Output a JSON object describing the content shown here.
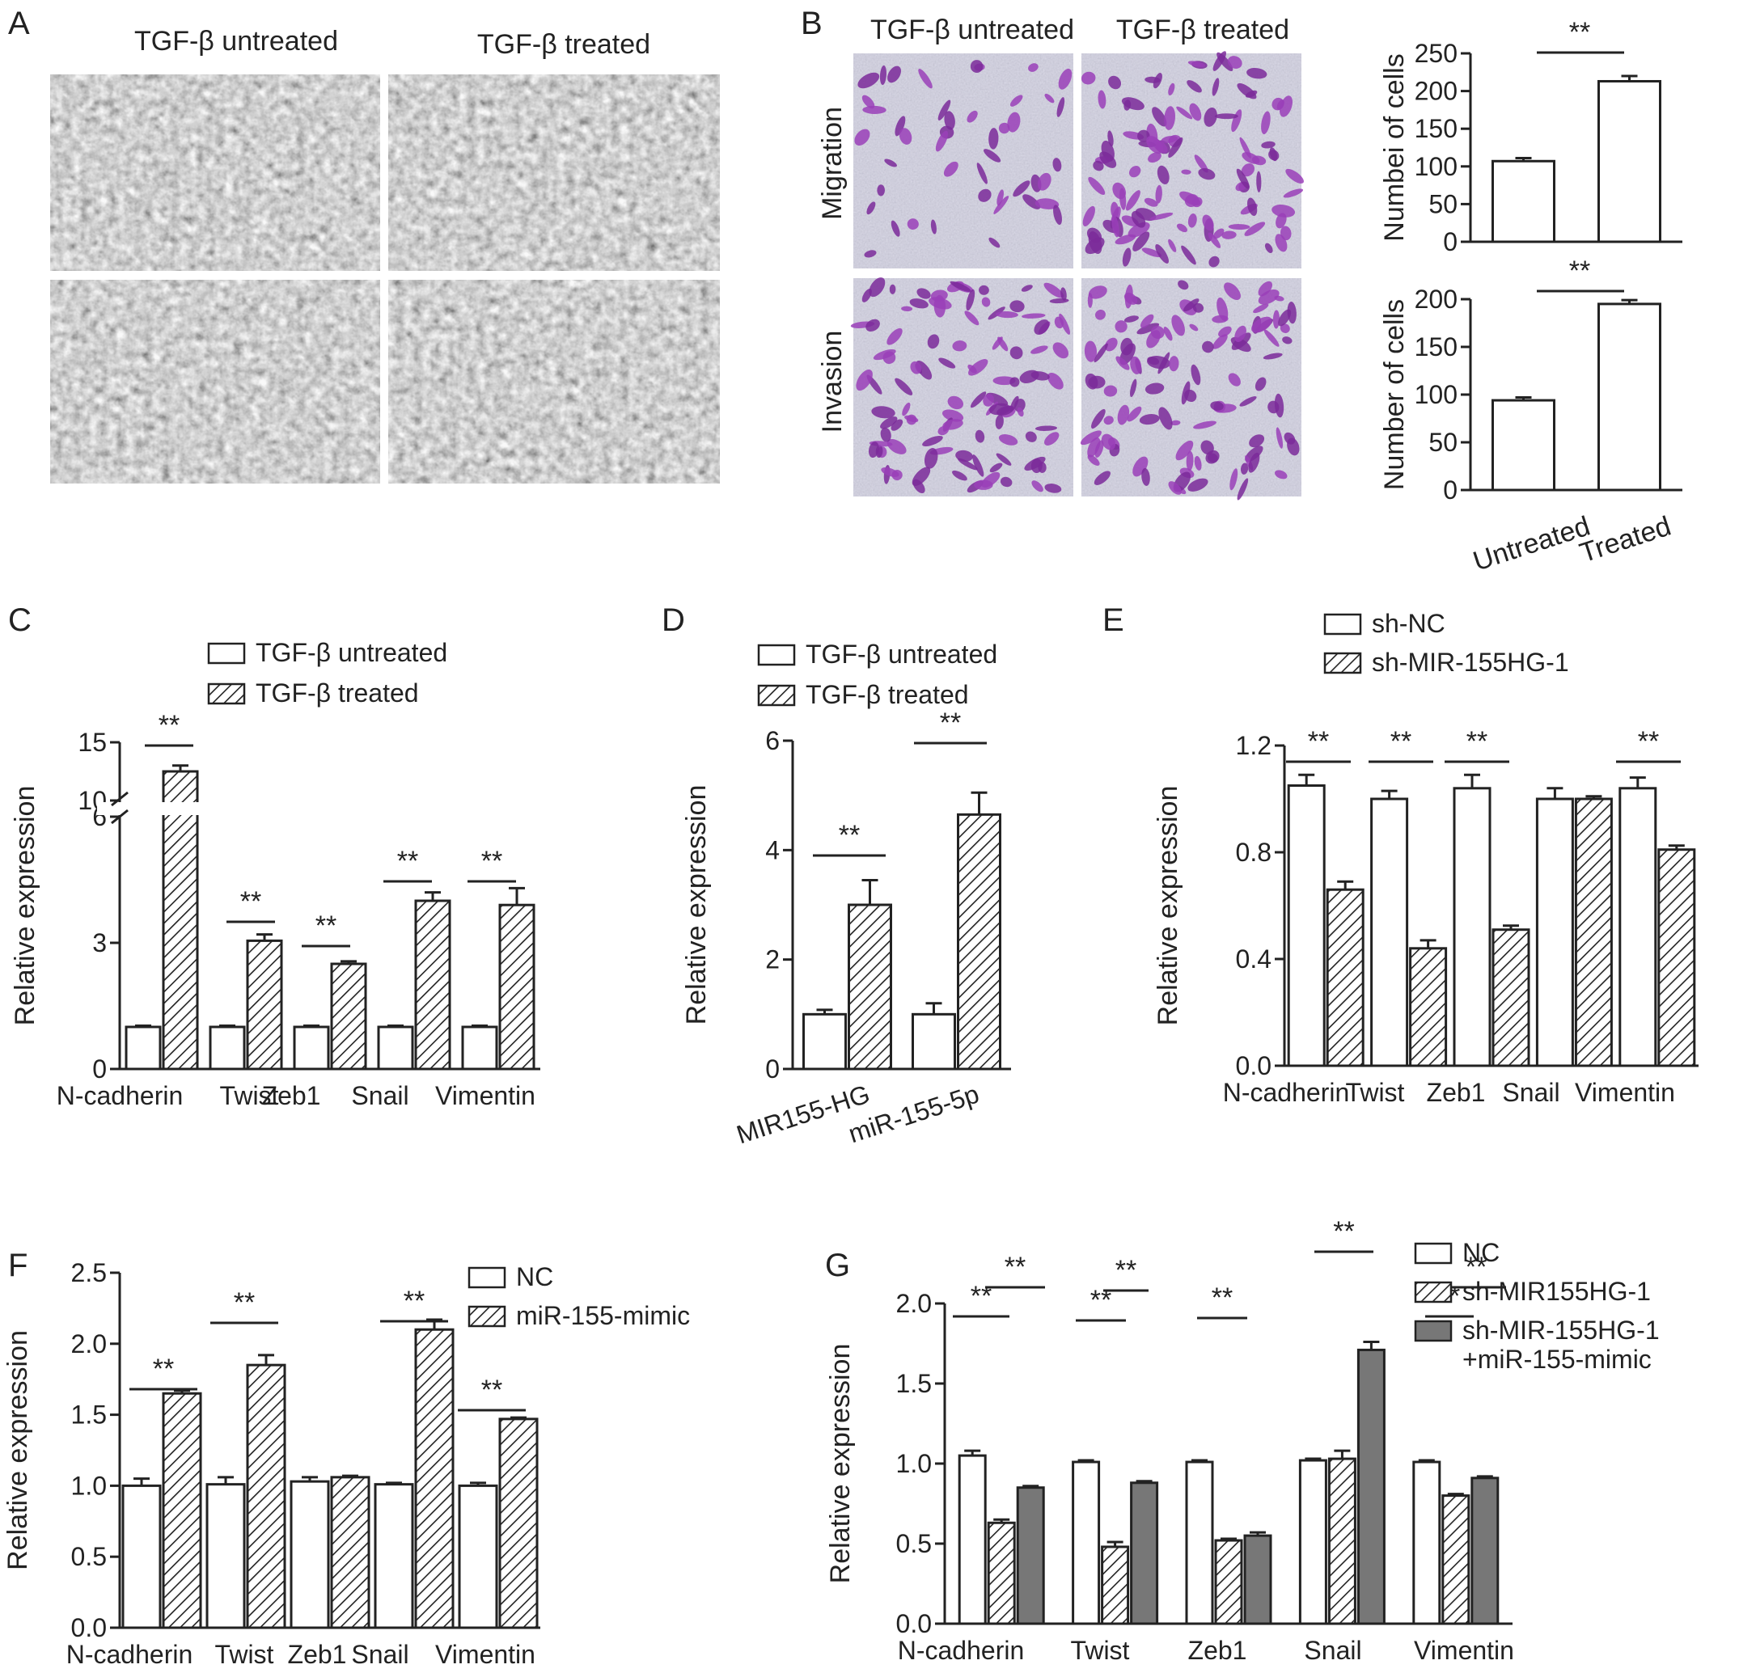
{
  "figure": {
    "panels": {
      "A": {
        "letter": "A",
        "col_titles": [
          "TGF-β untreated",
          "TGF-β treated"
        ],
        "image_desc": "Phase-contrast micrographs of cells"
      },
      "B": {
        "letter": "B",
        "col_titles": [
          "TGF-β untreated",
          "TGF-β treated"
        ],
        "row_labels": [
          "Migration",
          "Invasion"
        ],
        "image_desc": "Transwell assay images with purple-stained cells"
      }
    }
  },
  "chart_data": [
    {
      "id": "B1",
      "type": "bar",
      "panel": "B",
      "ylabel": "Numbei of cells",
      "ylim": [
        0,
        250
      ],
      "yticks": [
        0,
        50,
        100,
        150,
        200,
        250
      ],
      "categories": [
        "Untreated",
        "Treated"
      ],
      "series": [
        {
          "values": [
            107,
            213
          ],
          "errors": [
            4,
            7
          ]
        }
      ],
      "significance": [
        {
          "from": 0,
          "to": 1,
          "label": "**"
        }
      ]
    },
    {
      "id": "B2",
      "type": "bar",
      "panel": "B",
      "ylabel": "Number of cells",
      "ylim": [
        0,
        200
      ],
      "yticks": [
        0,
        50,
        100,
        150,
        200
      ],
      "categories": [
        "Untreated",
        "Treated"
      ],
      "series": [
        {
          "values": [
            94,
            195
          ],
          "errors": [
            3,
            4
          ]
        }
      ],
      "significance": [
        {
          "from": 0,
          "to": 1,
          "label": "**"
        }
      ]
    },
    {
      "id": "C",
      "type": "bar",
      "panel": "C",
      "letter": "C",
      "ylabel": "Relative expression",
      "broken_axis": true,
      "yticks": [
        "0",
        "3",
        "6",
        "10",
        "15"
      ],
      "categories": [
        "N-cadherin",
        "Twist",
        "Zeb1",
        "Snail",
        "Vimentin"
      ],
      "series": [
        {
          "name": "TGF-β untreated",
          "values": [
            1.0,
            1.0,
            1.0,
            1.0,
            1.0
          ],
          "errors": [
            0.03,
            0.03,
            0.03,
            0.03,
            0.03
          ]
        },
        {
          "name": "TGF-β treated",
          "values": [
            12.5,
            3.05,
            2.5,
            4.0,
            3.9
          ],
          "errors": [
            0.5,
            0.15,
            0.06,
            0.2,
            0.4
          ]
        }
      ],
      "significance_label": "**"
    },
    {
      "id": "D",
      "type": "bar",
      "panel": "D",
      "letter": "D",
      "ylabel": "Relative expression",
      "ylim": [
        0,
        6
      ],
      "yticks": [
        0,
        2,
        4,
        6
      ],
      "categories": [
        "MIR155-HG",
        "miR-155-5p"
      ],
      "series": [
        {
          "name": "TGF-β untreated",
          "values": [
            1.0,
            1.0
          ],
          "errors": [
            0.08,
            0.2
          ]
        },
        {
          "name": "TGF-β treated",
          "values": [
            3.0,
            4.65
          ],
          "errors": [
            0.45,
            0.4
          ]
        }
      ],
      "significance_label": "**"
    },
    {
      "id": "E",
      "type": "bar",
      "panel": "E",
      "letter": "E",
      "ylabel": "Relative expression",
      "ylim": [
        0,
        1.2
      ],
      "yticks": [
        "0.0",
        "0.4",
        "0.8",
        "1.2"
      ],
      "categories": [
        "N-cadherin",
        "Twist",
        "Zeb1",
        "Snail",
        "Vimentin"
      ],
      "series": [
        {
          "name": "sh-NC",
          "values": [
            1.05,
            1.0,
            1.04,
            1.0,
            1.04
          ],
          "errors": [
            0.04,
            0.03,
            0.05,
            0.04,
            0.04
          ]
        },
        {
          "name": "sh-MIR-155HG-1",
          "values": [
            0.66,
            0.44,
            0.51,
            1.0,
            0.81
          ],
          "errors": [
            0.03,
            0.03,
            0.015,
            0.01,
            0.015
          ]
        }
      ],
      "significance_label": "**"
    },
    {
      "id": "F",
      "type": "bar",
      "panel": "F",
      "letter": "F",
      "ylabel": "Relative expression",
      "ylim": [
        0,
        2.5
      ],
      "yticks": [
        "0.0",
        "0.5",
        "1.0",
        "1.5",
        "2.0",
        "2.5"
      ],
      "categories": [
        "N-cadherin",
        "Twist",
        "Zeb1",
        "Snail",
        "Vimentin"
      ],
      "series": [
        {
          "name": "NC",
          "values": [
            1.0,
            1.01,
            1.03,
            1.01,
            1.0
          ],
          "errors": [
            0.05,
            0.05,
            0.03,
            0.01,
            0.02
          ]
        },
        {
          "name": "miR-155-mimic",
          "values": [
            1.65,
            1.85,
            1.06,
            2.1,
            1.47
          ],
          "errors": [
            0.02,
            0.07,
            0.01,
            0.07,
            0.01
          ]
        }
      ],
      "significance_label": "**"
    },
    {
      "id": "G",
      "type": "bar",
      "panel": "G",
      "letter": "G",
      "ylabel": "Relative expression",
      "ylim": [
        0,
        2.0
      ],
      "yticks": [
        "0.0",
        "0.5",
        "1.0",
        "1.5",
        "2.0"
      ],
      "categories": [
        "N-cadherin",
        "Twist",
        "Zeb1",
        "Snail",
        "Vimentin"
      ],
      "series": [
        {
          "name": "NC",
          "values": [
            1.05,
            1.01,
            1.01,
            1.02,
            1.01
          ],
          "errors": [
            0.03,
            0.01,
            0.01,
            0.01,
            0.01
          ]
        },
        {
          "name": "sh-MIR155HG-1",
          "values": [
            0.63,
            0.48,
            0.52,
            1.03,
            0.8
          ],
          "errors": [
            0.02,
            0.03,
            0.01,
            0.05,
            0.01
          ]
        },
        {
          "name": "sh-MIR-155HG-1\n+miR-155-mimic",
          "legend_lines": [
            "sh-MIR-155HG-1",
            "+miR-155-mimic"
          ],
          "values": [
            0.85,
            0.88,
            0.55,
            1.71,
            0.91
          ],
          "errors": [
            0.01,
            0.01,
            0.02,
            0.05,
            0.01
          ]
        }
      ],
      "significance_label": "**"
    }
  ]
}
